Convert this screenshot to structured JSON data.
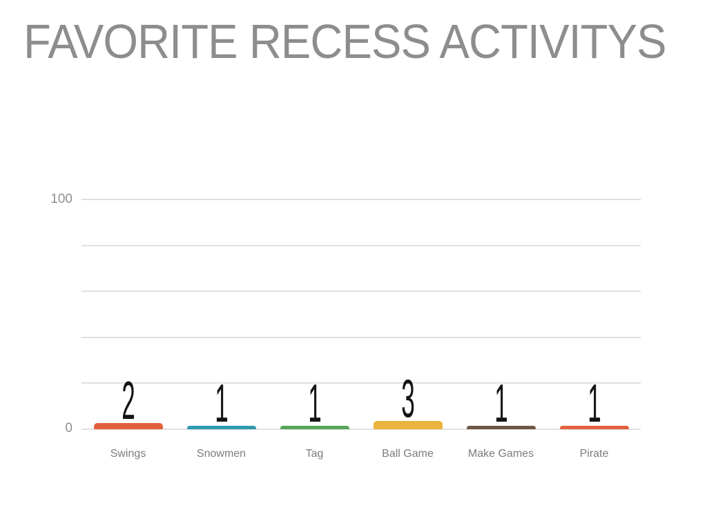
{
  "axis": {
    "y_top_label": "100",
    "y_bottom_label": "0"
  },
  "chart_data": {
    "type": "bar",
    "title": "FAVORITE RECESS ACTIVITYS",
    "categories": [
      "Swings",
      "Snowmen",
      "Tag",
      "Ball Game",
      "Make Games",
      "Pirate"
    ],
    "values": [
      2,
      1,
      1,
      3,
      1,
      1
    ],
    "bar_colors": [
      "#E2603C",
      "#2E9AAF",
      "#57A75A",
      "#E9B33C",
      "#6F5748",
      "#E4603C"
    ],
    "title_color": "#8D8D8D",
    "axis_label_color": "#8F8F8F",
    "category_label_color": "#7B7B7B",
    "value_label_color": "#141414",
    "gridline_color": "#E0E0E0",
    "background_color": "#FFFFFF",
    "ylim": [
      0,
      100
    ],
    "yticks_shown": [
      100,
      0
    ],
    "gridline_values": [
      100,
      80,
      60,
      40,
      20,
      0
    ],
    "grid": true,
    "legend": false,
    "xlabel": "",
    "ylabel": ""
  }
}
